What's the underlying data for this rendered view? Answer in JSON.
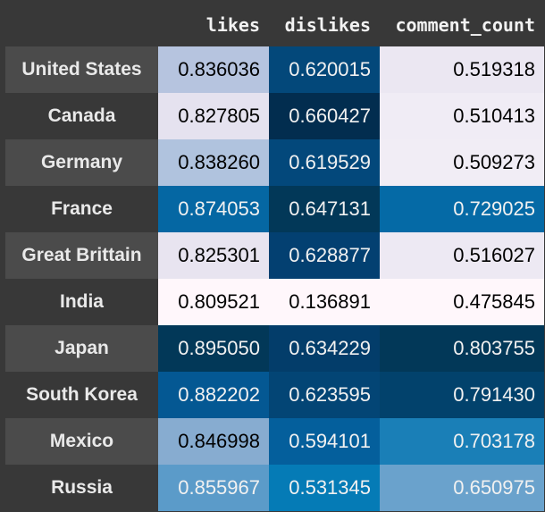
{
  "table": {
    "columns": [
      "likes",
      "dislikes",
      "comment_count"
    ],
    "rows": [
      {
        "label": "United States",
        "values": [
          "0.836036",
          "0.620015",
          "0.519318"
        ],
        "bg": [
          "#b6c4df",
          "#03487a",
          "#ebe7f2"
        ],
        "fg": [
          "#000000",
          "#f1f1f1",
          "#000000"
        ]
      },
      {
        "label": "Canada",
        "values": [
          "0.827805",
          "0.660427",
          "0.510413"
        ],
        "bg": [
          "#e5e2ef",
          "#022d4f",
          "#f0ecf5"
        ],
        "fg": [
          "#000000",
          "#f1f1f1",
          "#000000"
        ]
      },
      {
        "label": "Germany",
        "values": [
          "0.838260",
          "0.619529",
          "0.509273"
        ],
        "bg": [
          "#b0c3de",
          "#03487b",
          "#f1edf5"
        ],
        "fg": [
          "#000000",
          "#f1f1f1",
          "#000000"
        ]
      },
      {
        "label": "France",
        "values": [
          "0.874053",
          "0.647131",
          "0.729025"
        ],
        "bg": [
          "#0567a3",
          "#023858",
          "#056aa6"
        ],
        "fg": [
          "#f1f1f1",
          "#f1f1f1",
          "#f1f1f1"
        ]
      },
      {
        "label": "Great Brittain",
        "values": [
          "0.825301",
          "0.628877",
          "0.516027"
        ],
        "bg": [
          "#e8e4f0",
          "#034071",
          "#ede9f3"
        ],
        "fg": [
          "#000000",
          "#f1f1f1",
          "#000000"
        ]
      },
      {
        "label": "India",
        "values": [
          "0.809521",
          "0.136891",
          "0.475845"
        ],
        "bg": [
          "#fff7fb",
          "#fff7fb",
          "#fff7fb"
        ],
        "fg": [
          "#000000",
          "#000000",
          "#000000"
        ]
      },
      {
        "label": "Japan",
        "values": [
          "0.895050",
          "0.634229",
          "0.803755"
        ],
        "bg": [
          "#023858",
          "#033d6a",
          "#023858"
        ],
        "fg": [
          "#f1f1f1",
          "#f1f1f1",
          "#f1f1f1"
        ]
      },
      {
        "label": "South Korea",
        "values": [
          "0.882202",
          "0.623595",
          "0.791430"
        ],
        "bg": [
          "#045893",
          "#034575",
          "#02426c"
        ],
        "fg": [
          "#f1f1f1",
          "#f1f1f1",
          "#f1f1f1"
        ]
      },
      {
        "label": "Mexico",
        "values": [
          "0.846998",
          "0.594101",
          "0.703178"
        ],
        "bg": [
          "#87acd0",
          "#045f9c",
          "#1a7fb7"
        ],
        "fg": [
          "#000000",
          "#f1f1f1",
          "#f1f1f1"
        ]
      },
      {
        "label": "Russia",
        "values": [
          "0.855967",
          "0.531345",
          "0.650975"
        ],
        "bg": [
          "#5b9bc9",
          "#057bb6",
          "#6aa2cc"
        ],
        "fg": [
          "#f1f1f1",
          "#f1f1f1",
          "#f1f1f1"
        ]
      }
    ]
  }
}
